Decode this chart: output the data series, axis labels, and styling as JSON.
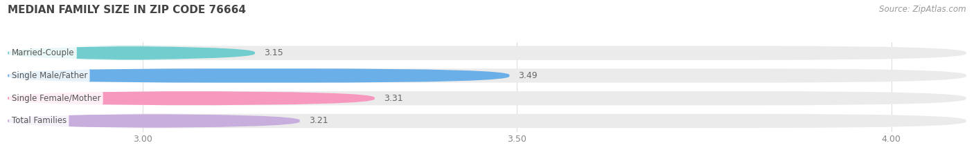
{
  "title": "MEDIAN FAMILY SIZE IN ZIP CODE 76664",
  "source": "Source: ZipAtlas.com",
  "categories": [
    "Married-Couple",
    "Single Male/Father",
    "Single Female/Mother",
    "Total Families"
  ],
  "values": [
    3.15,
    3.49,
    3.31,
    3.21
  ],
  "bar_colors": [
    "#72cece",
    "#6aafe8",
    "#f799be",
    "#c8aedd"
  ],
  "xlim_left": 2.82,
  "xlim_right": 4.1,
  "xticks": [
    3.0,
    3.5,
    4.0
  ],
  "bar_height": 0.62,
  "bar_gap": 0.38,
  "figsize": [
    14.06,
    2.33
  ],
  "dpi": 100,
  "background_color": "#ffffff",
  "plot_bg_color": "#f5f5f5",
  "label_fontsize": 8.5,
  "value_fontsize": 9,
  "title_fontsize": 11,
  "source_fontsize": 8.5,
  "tick_fontsize": 9,
  "title_color": "#444444",
  "tick_color": "#888888",
  "value_color": "#666666",
  "label_color": "#555555",
  "source_color": "#999999",
  "grid_color": "#dddddd"
}
